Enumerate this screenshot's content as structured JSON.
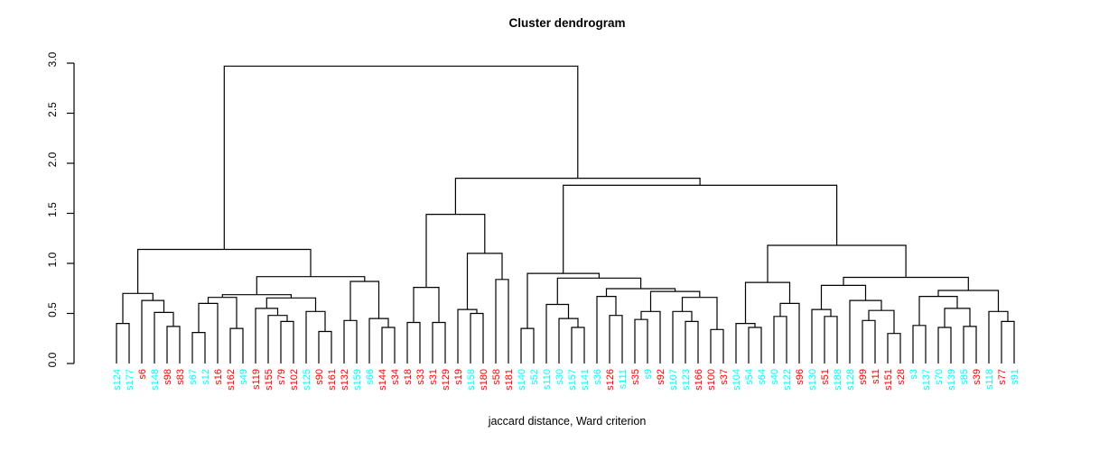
{
  "chart_data": {
    "type": "dendrogram",
    "title": "Cluster dendrogram",
    "xlabel": "jaccard distance, Ward criterion",
    "ylabel": "",
    "ylim": [
      0.0,
      3.0
    ],
    "grid": false,
    "yticks": [
      {
        "value": 0.0,
        "label": "0.0"
      },
      {
        "value": 0.5,
        "label": "0.5"
      },
      {
        "value": 1.0,
        "label": "1.0"
      },
      {
        "value": 1.5,
        "label": "1.5"
      },
      {
        "value": 2.0,
        "label": "2.0"
      },
      {
        "value": 2.5,
        "label": "2.5"
      },
      {
        "value": 3.0,
        "label": "3.0"
      }
    ],
    "colors": {
      "group_red": "#FF0000",
      "group_cyan": "#00FFFF",
      "line": "#000000"
    },
    "leaves": [
      {
        "label": "s124",
        "color": "#00FFFF"
      },
      {
        "label": "s177",
        "color": "#00FFFF"
      },
      {
        "label": "s6",
        "color": "#FF0000"
      },
      {
        "label": "s148",
        "color": "#00FFFF"
      },
      {
        "label": "s98",
        "color": "#FF0000"
      },
      {
        "label": "s83",
        "color": "#FF0000"
      },
      {
        "label": "s67",
        "color": "#00FFFF"
      },
      {
        "label": "s12",
        "color": "#00FFFF"
      },
      {
        "label": "s16",
        "color": "#FF0000"
      },
      {
        "label": "s162",
        "color": "#FF0000"
      },
      {
        "label": "s49",
        "color": "#00FFFF"
      },
      {
        "label": "s119",
        "color": "#FF0000"
      },
      {
        "label": "s155",
        "color": "#FF0000"
      },
      {
        "label": "s79",
        "color": "#FF0000"
      },
      {
        "label": "s102",
        "color": "#FF0000"
      },
      {
        "label": "s125",
        "color": "#00FFFF"
      },
      {
        "label": "s90",
        "color": "#FF0000"
      },
      {
        "label": "s161",
        "color": "#FF0000"
      },
      {
        "label": "s132",
        "color": "#FF0000"
      },
      {
        "label": "s159",
        "color": "#00FFFF"
      },
      {
        "label": "s66",
        "color": "#00FFFF"
      },
      {
        "label": "s144",
        "color": "#FF0000"
      },
      {
        "label": "s34",
        "color": "#FF0000"
      },
      {
        "label": "s18",
        "color": "#FF0000"
      },
      {
        "label": "s33",
        "color": "#FF0000"
      },
      {
        "label": "s31",
        "color": "#FF0000"
      },
      {
        "label": "s129",
        "color": "#FF0000"
      },
      {
        "label": "s19",
        "color": "#FF0000"
      },
      {
        "label": "s158",
        "color": "#00FFFF"
      },
      {
        "label": "s180",
        "color": "#FF0000"
      },
      {
        "label": "s58",
        "color": "#FF0000"
      },
      {
        "label": "s181",
        "color": "#FF0000"
      },
      {
        "label": "s140",
        "color": "#00FFFF"
      },
      {
        "label": "s52",
        "color": "#00FFFF"
      },
      {
        "label": "s110",
        "color": "#00FFFF"
      },
      {
        "label": "s30",
        "color": "#00FFFF"
      },
      {
        "label": "s157",
        "color": "#00FFFF"
      },
      {
        "label": "s141",
        "color": "#00FFFF"
      },
      {
        "label": "s36",
        "color": "#00FFFF"
      },
      {
        "label": "s126",
        "color": "#FF0000"
      },
      {
        "label": "s111",
        "color": "#00FFFF"
      },
      {
        "label": "s35",
        "color": "#FF0000"
      },
      {
        "label": "s9",
        "color": "#00FFFF"
      },
      {
        "label": "s92",
        "color": "#FF0000"
      },
      {
        "label": "s107",
        "color": "#00FFFF"
      },
      {
        "label": "s123",
        "color": "#00FFFF"
      },
      {
        "label": "s166",
        "color": "#FF0000"
      },
      {
        "label": "s100",
        "color": "#FF0000"
      },
      {
        "label": "s37",
        "color": "#FF0000"
      },
      {
        "label": "s104",
        "color": "#00FFFF"
      },
      {
        "label": "s54",
        "color": "#00FFFF"
      },
      {
        "label": "s64",
        "color": "#00FFFF"
      },
      {
        "label": "s40",
        "color": "#00FFFF"
      },
      {
        "label": "s122",
        "color": "#00FFFF"
      },
      {
        "label": "s96",
        "color": "#FF0000"
      },
      {
        "label": "s130",
        "color": "#00FFFF"
      },
      {
        "label": "s51",
        "color": "#FF0000"
      },
      {
        "label": "s188",
        "color": "#00FFFF"
      },
      {
        "label": "s128",
        "color": "#00FFFF"
      },
      {
        "label": "s99",
        "color": "#FF0000"
      },
      {
        "label": "s11",
        "color": "#FF0000"
      },
      {
        "label": "s151",
        "color": "#FF0000"
      },
      {
        "label": "s28",
        "color": "#FF0000"
      },
      {
        "label": "s3",
        "color": "#00FFFF"
      },
      {
        "label": "s137",
        "color": "#00FFFF"
      },
      {
        "label": "s70",
        "color": "#00FFFF"
      },
      {
        "label": "s139",
        "color": "#00FFFF"
      },
      {
        "label": "s85",
        "color": "#00FFFF"
      },
      {
        "label": "s39",
        "color": "#FF0000"
      },
      {
        "label": "s118",
        "color": "#00FFFF"
      },
      {
        "label": "s77",
        "color": "#FF0000"
      },
      {
        "label": "s91",
        "color": "#00FFFF"
      }
    ],
    "tree": [
      2.97,
      [
        1.14,
        [
          0.7,
          [
            0.4,
            "s124",
            "s177"
          ],
          [
            0.63,
            "s6",
            [
              0.51,
              "s148",
              [
                0.37,
                "s98",
                "s83"
              ]
            ]
          ]
        ],
        [
          0.868,
          [
            0.687,
            [
              0.66,
              [
                0.6,
                [
                  0.31,
                  "s67",
                  "s12"
                ],
                "s16"
              ],
              [
                0.35,
                "s162",
                "s49"
              ]
            ],
            [
              0.655,
              [
                0.55,
                "s119",
                [
                  0.48,
                  "s155",
                  [
                    0.42,
                    "s79",
                    "s102"
                  ]
                ]
              ],
              [
                0.52,
                "s125",
                [
                  0.32,
                  "s90",
                  "s161"
                ]
              ]
            ]
          ],
          [
            0.82,
            [
              0.43,
              "s132",
              "s159"
            ],
            [
              0.45,
              "s66",
              [
                0.36,
                "s144",
                "s34"
              ]
            ]
          ]
        ]
      ],
      [
        1.85,
        [
          1.49,
          [
            0.76,
            [
              0.41,
              "s18",
              "s33"
            ],
            [
              0.41,
              "s31",
              "s129"
            ]
          ],
          [
            1.1,
            [
              0.54,
              "s19",
              [
                0.5,
                "s158",
                "s180"
              ]
            ],
            [
              0.84,
              "s58",
              "s181"
            ]
          ]
        ],
        [
          1.78,
          [
            0.9,
            [
              0.35,
              "s140",
              "s52"
            ],
            [
              0.853,
              [
                0.59,
                "s110",
                [
                  0.45,
                  "s30",
                  [
                    0.36,
                    "s157",
                    "s141"
                  ]
                ]
              ],
              [
                0.748,
                [
                  0.67,
                  "s36",
                  [
                    0.48,
                    "s126",
                    "s111"
                  ]
                ],
                [
                  0.72,
                  [
                    0.52,
                    [
                      0.44,
                      "s35",
                      "s9"
                    ],
                    "s92"
                  ],
                  [
                    0.66,
                    [
                      0.52,
                      "s107",
                      [
                        0.42,
                        "s123",
                        "s166"
                      ]
                    ],
                    [
                      0.34,
                      "s100",
                      "s37"
                    ]
                  ]
                ]
              ]
            ]
          ],
          [
            1.18,
            [
              0.81,
              [
                0.4,
                "s104",
                [
                  0.36,
                  "s54",
                  "s64"
                ]
              ],
              [
                0.6,
                [
                  0.47,
                  "s40",
                  "s122"
                ],
                "s96"
              ]
            ],
            [
              0.86,
              [
                0.78,
                [
                  0.54,
                  "s130",
                  [
                    0.47,
                    "s51",
                    "s188"
                  ]
                ],
                [
                  0.63,
                  "s128",
                  [
                    0.53,
                    [
                      0.43,
                      "s99",
                      "s11"
                    ],
                    [
                      0.3,
                      "s151",
                      "s28"
                    ]
                  ]
                ]
              ],
              [
                0.73,
                [
                  0.67,
                  [
                    0.38,
                    "s3",
                    "s137"
                  ],
                  [
                    0.55,
                    [
                      0.36,
                      "s70",
                      "s139"
                    ],
                    [
                      0.37,
                      "s85",
                      "s39"
                    ]
                  ]
                ],
                [
                  0.52,
                  "s118",
                  [
                    0.42,
                    "s77",
                    "s91"
                  ]
                ]
              ]
            ]
          ]
        ]
      ]
    ]
  }
}
